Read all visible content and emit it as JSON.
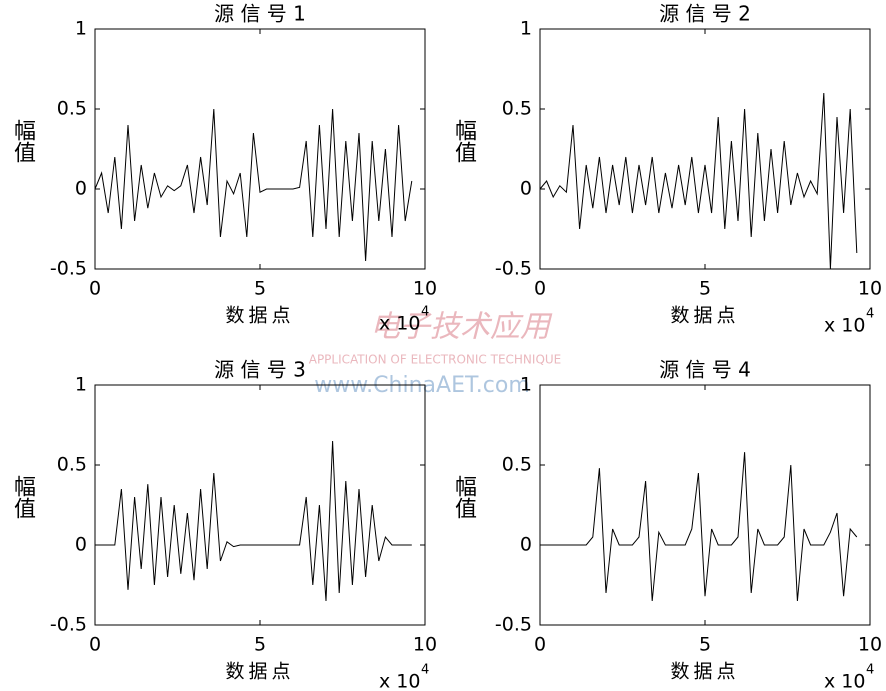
{
  "chart_data": [
    {
      "type": "line",
      "title": "源 信 号 1",
      "xlabel": "数据点",
      "ylabel": "幅值",
      "x_offset_text": "x 10",
      "x_offset_exponent": "4",
      "xlim": [
        0,
        10
      ],
      "ylim": [
        -0.5,
        1
      ],
      "xticks": [
        0,
        5,
        10
      ],
      "yticks": [
        -0.5,
        0,
        0.5,
        1
      ],
      "color": "#000000",
      "x": [
        0,
        0.2,
        0.4,
        0.6,
        0.8,
        1.0,
        1.2,
        1.4,
        1.6,
        1.8,
        2.0,
        2.2,
        2.4,
        2.6,
        2.8,
        3.0,
        3.2,
        3.4,
        3.6,
        3.8,
        4.0,
        4.2,
        4.4,
        4.6,
        4.8,
        5.0,
        5.2,
        5.4,
        5.6,
        5.8,
        6.0,
        6.2,
        6.4,
        6.6,
        6.8,
        7.0,
        7.2,
        7.4,
        7.6,
        7.8,
        8.0,
        8.2,
        8.4,
        8.6,
        8.8,
        9.0,
        9.2,
        9.4,
        9.6
      ],
      "values": [
        0,
        0.1,
        -0.15,
        0.2,
        -0.25,
        0.4,
        -0.2,
        0.15,
        -0.12,
        0.1,
        -0.05,
        0.02,
        -0.01,
        0.02,
        0.15,
        -0.15,
        0.2,
        -0.1,
        0.5,
        -0.3,
        0.05,
        -0.03,
        0.1,
        -0.3,
        0.35,
        -0.02,
        0,
        0,
        0,
        0,
        0,
        0.01,
        0.3,
        -0.3,
        0.4,
        -0.25,
        0.5,
        -0.3,
        0.3,
        -0.2,
        0.35,
        -0.45,
        0.3,
        -0.2,
        0.25,
        -0.3,
        0.4,
        -0.2,
        0.05
      ]
    },
    {
      "type": "line",
      "title": "源 信 号 2",
      "xlabel": "数据点",
      "ylabel": "幅值",
      "x_offset_text": "x 10",
      "x_offset_exponent": "4",
      "xlim": [
        0,
        10
      ],
      "ylim": [
        -0.5,
        1
      ],
      "xticks": [
        0,
        5,
        10
      ],
      "yticks": [
        -0.5,
        0,
        0.5,
        1
      ],
      "color": "#000000",
      "x": [
        0,
        0.2,
        0.4,
        0.6,
        0.8,
        1.0,
        1.2,
        1.4,
        1.6,
        1.8,
        2.0,
        2.2,
        2.4,
        2.6,
        2.8,
        3.0,
        3.2,
        3.4,
        3.6,
        3.8,
        4.0,
        4.2,
        4.4,
        4.6,
        4.8,
        5.0,
        5.2,
        5.4,
        5.6,
        5.8,
        6.0,
        6.2,
        6.4,
        6.6,
        6.8,
        7.0,
        7.2,
        7.4,
        7.6,
        7.8,
        8.0,
        8.2,
        8.4,
        8.6,
        8.8,
        9.0,
        9.2,
        9.4,
        9.6
      ],
      "values": [
        0,
        0.05,
        -0.05,
        0.02,
        -0.02,
        0.4,
        -0.25,
        0.15,
        -0.12,
        0.2,
        -0.15,
        0.15,
        -0.1,
        0.2,
        -0.15,
        0.15,
        -0.1,
        0.2,
        -0.15,
        0.1,
        -0.12,
        0.15,
        -0.1,
        0.2,
        -0.15,
        0.15,
        -0.15,
        0.45,
        -0.25,
        0.3,
        -0.2,
        0.5,
        -0.3,
        0.35,
        -0.2,
        0.25,
        -0.15,
        0.3,
        -0.1,
        0.1,
        -0.05,
        0.05,
        -0.03,
        0.6,
        -0.5,
        0.45,
        -0.15,
        0.5,
        -0.4
      ]
    },
    {
      "type": "line",
      "title": "源 信 号 3",
      "xlabel": "数据点",
      "ylabel": "幅值",
      "x_offset_text": "x 10",
      "x_offset_exponent": "4",
      "xlim": [
        0,
        10
      ],
      "ylim": [
        -0.5,
        1
      ],
      "xticks": [
        0,
        5,
        10
      ],
      "yticks": [
        -0.5,
        0,
        0.5,
        1
      ],
      "color": "#000000",
      "x": [
        0,
        0.2,
        0.4,
        0.6,
        0.8,
        1.0,
        1.2,
        1.4,
        1.6,
        1.8,
        2.0,
        2.2,
        2.4,
        2.6,
        2.8,
        3.0,
        3.2,
        3.4,
        3.6,
        3.8,
        4.0,
        4.2,
        4.4,
        4.6,
        4.8,
        5.0,
        5.2,
        5.4,
        5.6,
        5.8,
        6.0,
        6.2,
        6.4,
        6.6,
        6.8,
        7.0,
        7.2,
        7.4,
        7.6,
        7.8,
        8.0,
        8.2,
        8.4,
        8.6,
        8.8,
        9.0,
        9.2,
        9.4,
        9.6
      ],
      "values": [
        0,
        0,
        0,
        0,
        0.35,
        -0.28,
        0.3,
        -0.15,
        0.38,
        -0.25,
        0.3,
        -0.2,
        0.25,
        -0.18,
        0.2,
        -0.22,
        0.35,
        -0.15,
        0.45,
        -0.1,
        0.02,
        -0.01,
        0,
        0,
        0,
        0,
        0,
        0,
        0,
        0,
        0,
        0,
        0.3,
        -0.25,
        0.25,
        -0.35,
        0.65,
        -0.3,
        0.4,
        -0.25,
        0.35,
        -0.2,
        0.25,
        -0.1,
        0.05,
        0,
        0,
        0,
        0
      ]
    },
    {
      "type": "line",
      "title": "源 信 号 4",
      "xlabel": "数据点",
      "ylabel": "幅值",
      "x_offset_text": "x 10",
      "x_offset_exponent": "4",
      "xlim": [
        0,
        10
      ],
      "ylim": [
        -0.5,
        1
      ],
      "xticks": [
        0,
        5,
        10
      ],
      "yticks": [
        -0.5,
        0,
        0.5,
        1
      ],
      "color": "#000000",
      "x": [
        0,
        0.2,
        0.4,
        0.6,
        0.8,
        1.0,
        1.2,
        1.4,
        1.6,
        1.8,
        2.0,
        2.2,
        2.4,
        2.6,
        2.8,
        3.0,
        3.2,
        3.4,
        3.6,
        3.8,
        4.0,
        4.2,
        4.4,
        4.6,
        4.8,
        5.0,
        5.2,
        5.4,
        5.6,
        5.8,
        6.0,
        6.2,
        6.4,
        6.6,
        6.8,
        7.0,
        7.2,
        7.4,
        7.6,
        7.8,
        8.0,
        8.2,
        8.4,
        8.6,
        8.8,
        9.0,
        9.2,
        9.4,
        9.6
      ],
      "values": [
        0,
        0,
        0,
        0,
        0,
        0,
        0,
        0,
        0.05,
        0.48,
        -0.3,
        0.1,
        0,
        0,
        0,
        0.05,
        0.4,
        -0.35,
        0.08,
        0,
        0,
        0,
        0,
        0.1,
        0.45,
        -0.32,
        0.1,
        0,
        0,
        0,
        0.05,
        0.58,
        -0.3,
        0.1,
        0,
        0,
        0,
        0.05,
        0.5,
        -0.35,
        0.1,
        0,
        0,
        0,
        0.08,
        0.2,
        -0.32,
        0.1,
        0.05
      ]
    }
  ],
  "watermark": {
    "title": "电子技术应用",
    "subtitle": "APPLICATION OF ELECTRONIC TECHNIQUE",
    "url": "www.ChinaAET.com"
  }
}
